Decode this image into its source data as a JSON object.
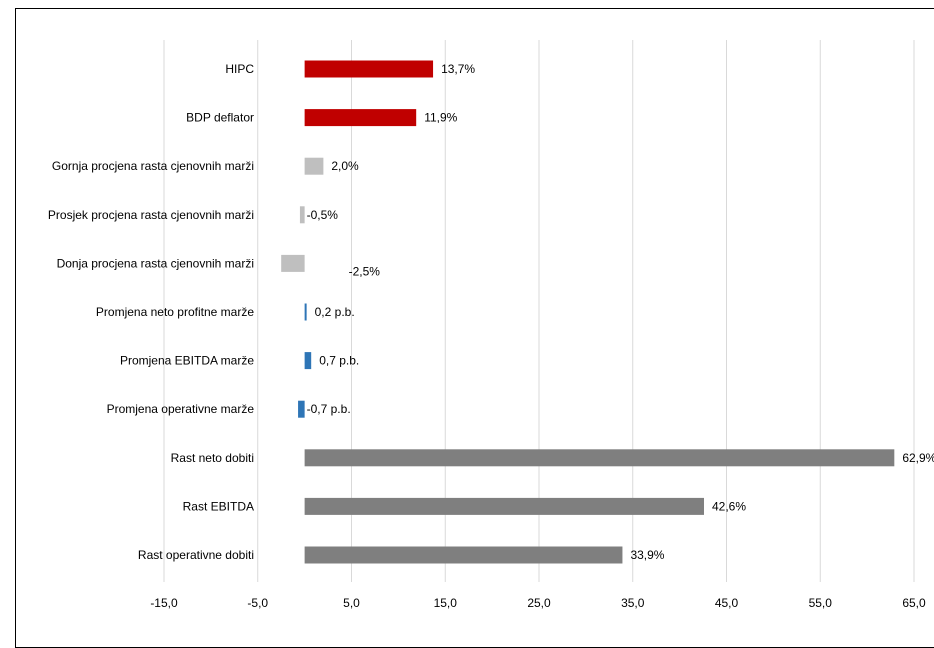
{
  "chart_data": {
    "type": "bar",
    "orientation": "horizontal",
    "title": "",
    "categories": [
      "HIPC",
      "BDP deflator",
      "Gornja procjena rasta cjenovnih marži",
      "Prosjek procjena rasta cjenovnih marži",
      "Donja procjena rasta cjenovnih marži",
      "Promjena neto profitne marže",
      "Promjena EBITDA marže",
      "Promjena operativne marže",
      "Rast neto dobiti",
      "Rast EBITDA",
      "Rast operativne dobiti"
    ],
    "values": [
      13.7,
      11.9,
      2.0,
      -0.5,
      -2.5,
      0.2,
      0.7,
      -0.7,
      62.9,
      42.6,
      33.9
    ],
    "data_labels": [
      "13,7%",
      "11,9%",
      "2,0%",
      "-0,5%",
      "-2,5%",
      "0,2 p.b.",
      "0,7 p.b.",
      "-0,7 p.b.",
      "62,9%",
      "42,6%",
      "33,9%"
    ],
    "colors": [
      "#c00000",
      "#c00000",
      "#bfbfbf",
      "#bfbfbf",
      "#bfbfbf",
      "#2e75b6",
      "#2e75b6",
      "#2e75b6",
      "#7f7f7f",
      "#7f7f7f",
      "#7f7f7f"
    ],
    "xlim": [
      -15,
      65
    ],
    "xticks": [
      -15,
      -5,
      5,
      15,
      25,
      35,
      45,
      55,
      65
    ],
    "xtick_labels": [
      "-15,0",
      "-5,0",
      "5,0",
      "15,0",
      "25,0",
      "35,0",
      "45,0",
      "55,0",
      "65,0"
    ],
    "grid": "vertical",
    "legend": "none",
    "xlabel": "",
    "ylabel": ""
  }
}
